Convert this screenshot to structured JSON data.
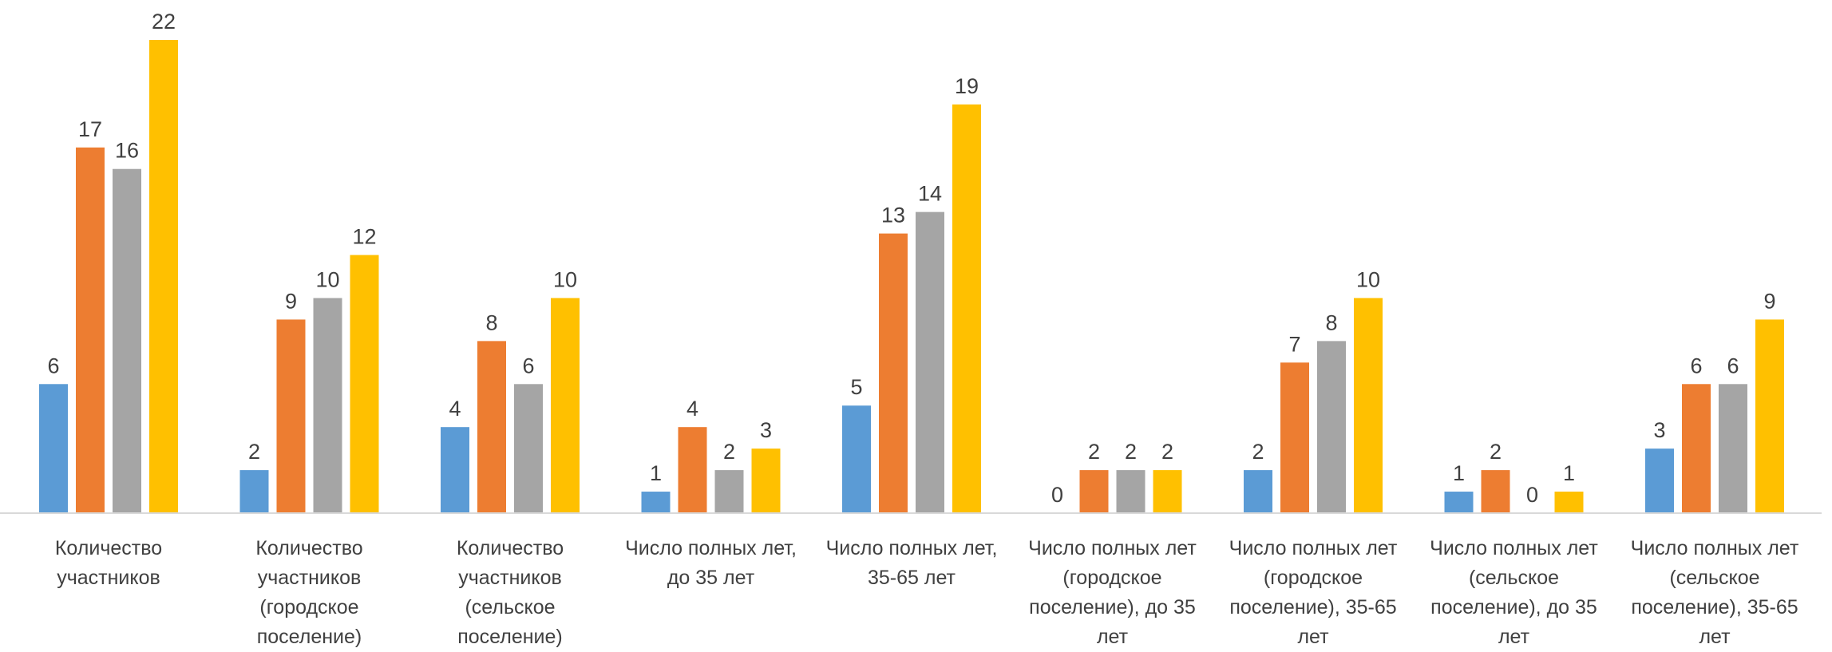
{
  "chart_data": {
    "type": "bar",
    "categories": [
      [
        "Количество",
        "участников"
      ],
      [
        "Количество",
        "участников",
        "(городское",
        "поселение)"
      ],
      [
        "Количество",
        "участников",
        "(сельское",
        "поселение)"
      ],
      [
        "Число полных лет,",
        "до 35 лет"
      ],
      [
        "Число полных лет,",
        "35-65 лет"
      ],
      [
        "Число полных лет",
        "(городское",
        "поселение), до 35",
        "лет"
      ],
      [
        "Число полных лет",
        "(городское",
        "поселение), 35-65",
        "лет"
      ],
      [
        "Число полных лет",
        "(сельское",
        "поселение), до 35",
        "лет"
      ],
      [
        "Число полных лет",
        "(сельское",
        "поселение), 35-65",
        "лет"
      ]
    ],
    "series": [
      {
        "color": "#5B9BD5",
        "values": [
          6,
          2,
          4,
          1,
          5,
          0,
          2,
          1,
          3
        ]
      },
      {
        "color": "#ED7D31",
        "values": [
          17,
          9,
          8,
          4,
          13,
          2,
          7,
          2,
          6
        ]
      },
      {
        "color": "#A5A5A5",
        "values": [
          16,
          10,
          6,
          2,
          14,
          2,
          8,
          0,
          6
        ]
      },
      {
        "color": "#FFC000",
        "values": [
          22,
          12,
          10,
          3,
          19,
          2,
          10,
          1,
          9
        ]
      }
    ],
    "title": "",
    "xlabel": "",
    "ylabel": "",
    "ylim": [
      0,
      22
    ],
    "grid": false,
    "legend": "none",
    "axis_color": "#D9D9D9"
  }
}
